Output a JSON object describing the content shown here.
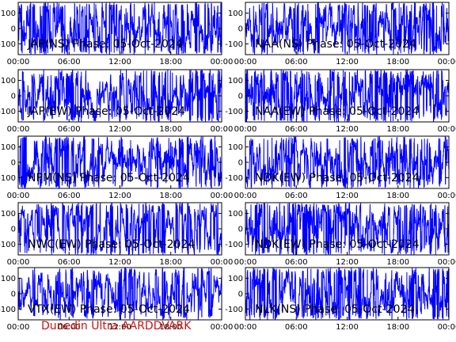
{
  "footer_text": "Dunedin Ultra AARDDVARK",
  "colors": {
    "trace": "#0000ff",
    "frame": "#000000",
    "footer": "#cc1111"
  },
  "chart_data": [
    {
      "type": "line",
      "title": "JAP(NS) Phase: 05-Oct-2024",
      "ylim": [
        -170,
        170
      ],
      "yticks": [
        100,
        0,
        -100
      ],
      "xlim": [
        0,
        24
      ],
      "xticks": [
        "00:00",
        "06:00",
        "12:00",
        "18:00",
        "00:00"
      ],
      "series": [
        {
          "color": "#0000ff",
          "density": 1.0,
          "amplitude": 0.95
        }
      ]
    },
    {
      "type": "line",
      "title": "NAA(NS) Phase: 05-Oct-2024",
      "ylim": [
        -170,
        170
      ],
      "yticks": [
        100,
        0,
        -100
      ],
      "xlim": [
        0,
        24
      ],
      "xticks": [
        "00:00",
        "06:00",
        "12:00",
        "18:00",
        "00:00"
      ],
      "series": [
        {
          "color": "#0000ff",
          "density": 1.0,
          "amplitude": 0.95
        }
      ]
    },
    {
      "type": "line",
      "title": "JAP(EW) Phase: 05-Oct-2024",
      "ylim": [
        -170,
        170
      ],
      "yticks": [
        100,
        0,
        -100
      ],
      "xlim": [
        0,
        24
      ],
      "xticks": [
        "00:00",
        "06:00",
        "12:00",
        "18:00",
        "00:00"
      ],
      "series": [
        {
          "color": "#0000ff",
          "density": 0.9,
          "amplitude": 0.95
        }
      ]
    },
    {
      "type": "line",
      "title": "NAA(EW) Phase: 05-Oct-2024",
      "ylim": [
        -170,
        170
      ],
      "yticks": [
        100,
        0,
        -100
      ],
      "xlim": [
        0,
        24
      ],
      "xticks": [
        "00:00",
        "06:00",
        "12:00",
        "18:00",
        "00:00"
      ],
      "series": [
        {
          "color": "#0000ff",
          "density": 1.0,
          "amplitude": 0.95
        }
      ]
    },
    {
      "type": "line",
      "title": "NPM(NS) Phase: 05-Oct-2024",
      "ylim": [
        -170,
        170
      ],
      "yticks": [
        100,
        0,
        -100
      ],
      "xlim": [
        0,
        24
      ],
      "xticks": [
        "00:00",
        "06:00",
        "12:00",
        "18:00",
        "00:00"
      ],
      "series": [
        {
          "color": "#0000ff",
          "density": 0.9,
          "amplitude": 0.95
        }
      ]
    },
    {
      "type": "line",
      "title": "NDK(EW) Phase: 05-Oct-2024",
      "ylim": [
        -170,
        170
      ],
      "yticks": [
        100,
        0,
        -100
      ],
      "xlim": [
        0,
        24
      ],
      "xticks": [
        "00:00",
        "06:00",
        "12:00",
        "18:00",
        "00:00"
      ],
      "series": [
        {
          "color": "#0000ff",
          "density": 1.0,
          "amplitude": 0.95
        }
      ]
    },
    {
      "type": "line",
      "title": "NWC(EW) Phase: 05-Oct-2024",
      "ylim": [
        -170,
        170
      ],
      "yticks": [
        100,
        0,
        -100
      ],
      "xlim": [
        0,
        24
      ],
      "xticks": [
        "00:00",
        "06:00",
        "12:00",
        "18:00",
        "00:00"
      ],
      "series": [
        {
          "color": "#0000ff",
          "density": 0.8,
          "amplitude": 0.95
        }
      ]
    },
    {
      "type": "line",
      "title": "NDK(EW) Phase: 05-Oct-2024",
      "ylim": [
        -170,
        170
      ],
      "yticks": [
        100,
        0,
        -100
      ],
      "xlim": [
        0,
        24
      ],
      "xticks": [
        "00:00",
        "06:00",
        "12:00",
        "18:00",
        "00:00"
      ],
      "series": [
        {
          "color": "#0000ff",
          "density": 1.0,
          "amplitude": 0.95
        }
      ]
    },
    {
      "type": "line",
      "title": "VTX(EW) Phase: 05-Oct-2024",
      "ylim": [
        -170,
        170
      ],
      "yticks": [
        100,
        0,
        -100
      ],
      "xlim": [
        0,
        24
      ],
      "xticks": [
        "00:00",
        "06:00",
        "12:00",
        "18:00",
        "00:00"
      ],
      "series": [
        {
          "color": "#0000ff",
          "density": 0.8,
          "amplitude": 0.85
        }
      ]
    },
    {
      "type": "line",
      "title": "NLK(NS) Phase: 05-Oct-2024",
      "ylim": [
        -170,
        170
      ],
      "yticks": [
        100,
        0,
        -100
      ],
      "xlim": [
        0,
        24
      ],
      "xticks": [
        "00:00",
        "06:00",
        "12:00",
        "18:00",
        "00:00"
      ],
      "series": [
        {
          "color": "#0000ff",
          "density": 1.0,
          "amplitude": 0.9
        }
      ]
    }
  ]
}
